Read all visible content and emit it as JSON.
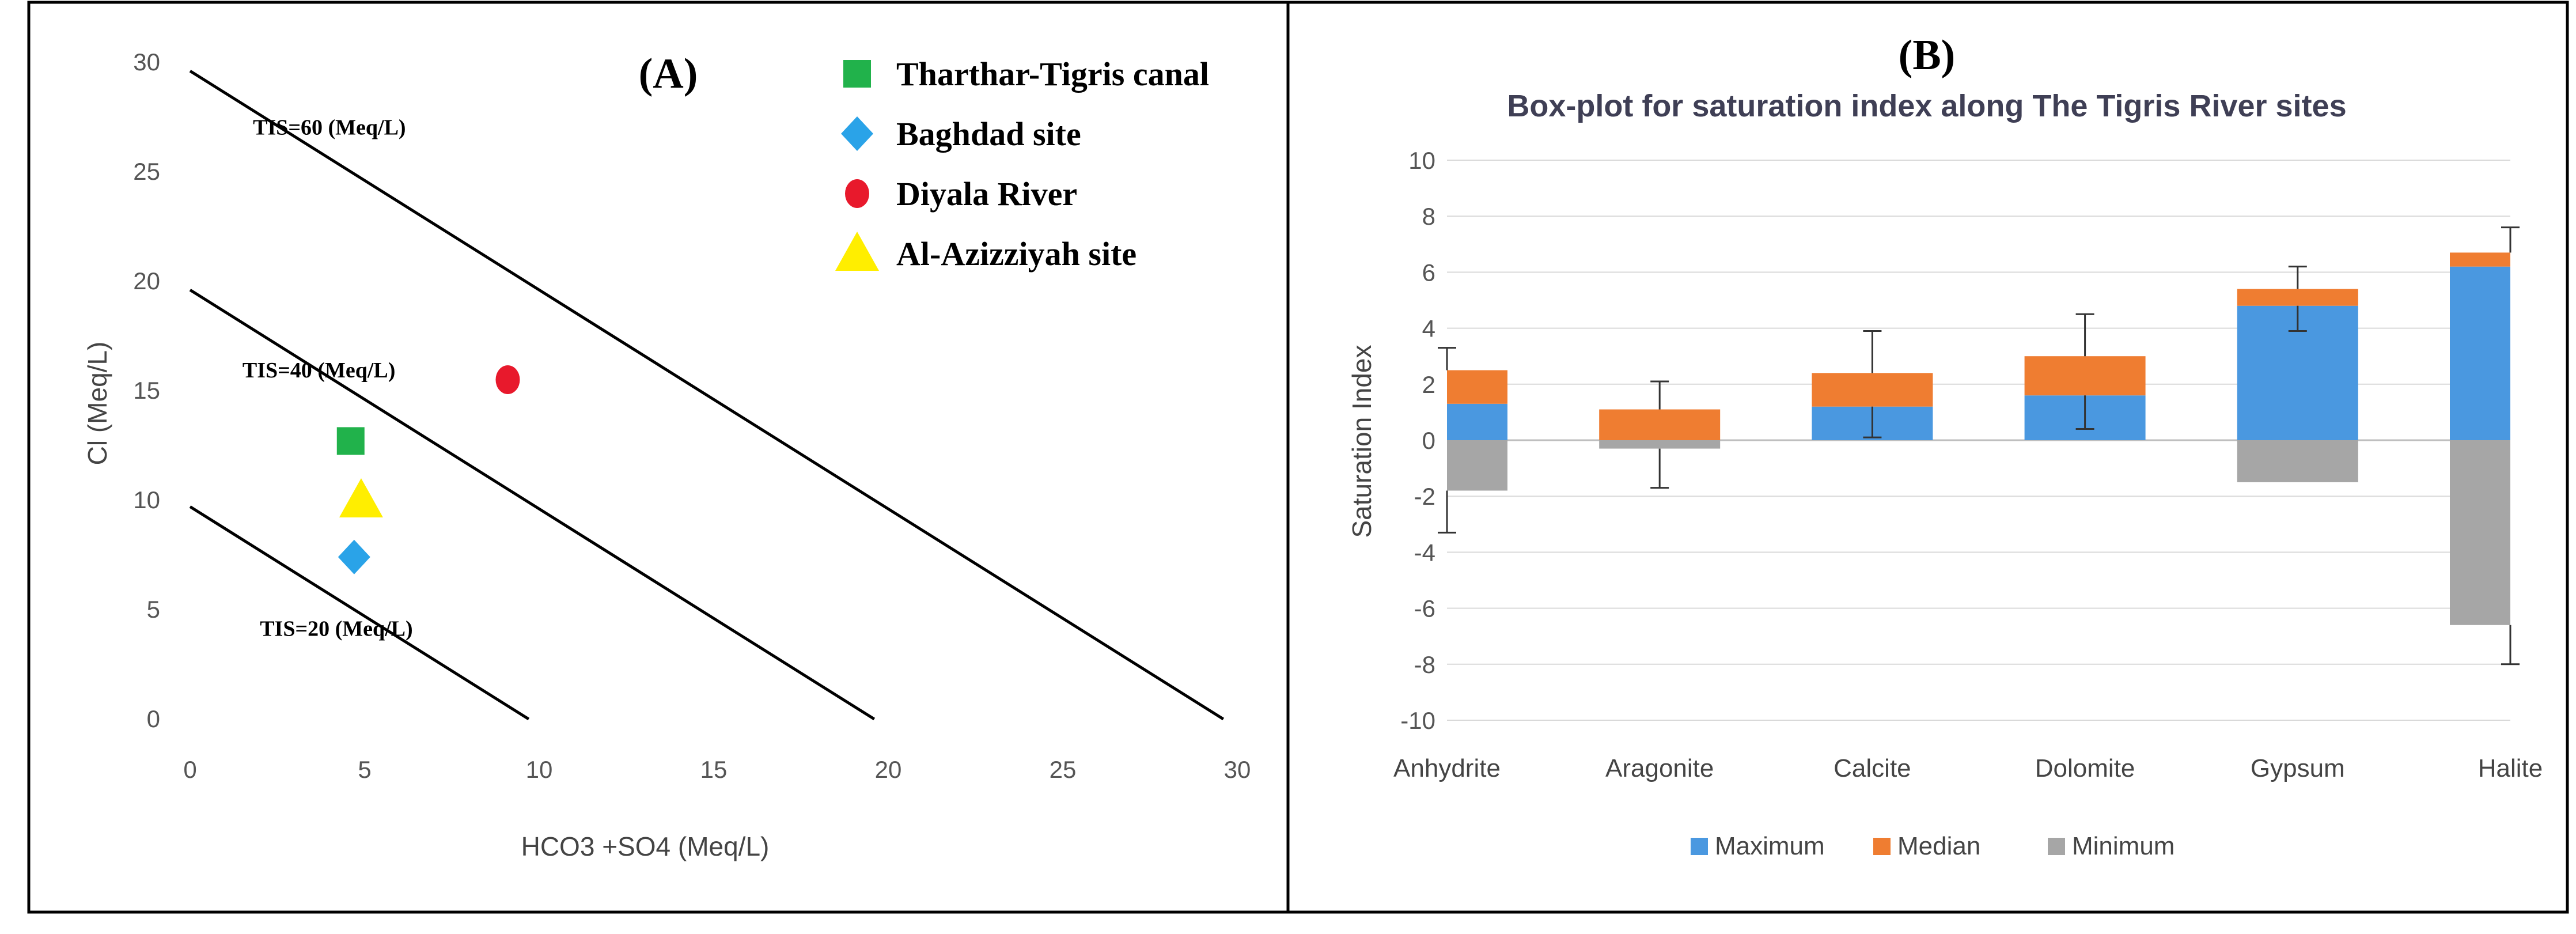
{
  "chart_data": [
    {
      "panel_label": "(A)",
      "type": "scatter",
      "xlabel": "HCO3 +SO4 (Meq/L)",
      "ylabel": "Cl (Meq/L)",
      "xlim": [
        0,
        30
      ],
      "ylim": [
        0,
        30
      ],
      "x_ticks": [
        "0",
        "5",
        "10",
        "15",
        "20",
        "25",
        "30"
      ],
      "y_ticks": [
        "0",
        "5",
        "10",
        "15",
        "20",
        "25",
        "30"
      ],
      "grid": false,
      "legend_position": "top-right",
      "tis_lines": [
        {
          "label": "TIS=60 (Meq/L)",
          "total": 29.6,
          "label_at": [
            1.8,
            26.7
          ]
        },
        {
          "label": "TIS=40 (Meq/L)",
          "total": 19.6,
          "label_at": [
            1.5,
            15.6
          ]
        },
        {
          "label": "TIS=20 (Meq/L)",
          "total": 9.7,
          "label_at": [
            2.0,
            3.8
          ]
        }
      ],
      "series": [
        {
          "name": "Tharthar-Tigris canal",
          "marker": "square",
          "color": "#21b24b",
          "x": 4.6,
          "y": 12.7
        },
        {
          "name": "Baghdad site",
          "marker": "diamond",
          "color": "#2aa3e8",
          "x": 4.7,
          "y": 7.4
        },
        {
          "name": "Diyala River",
          "marker": "circle",
          "color": "#e8192c",
          "x": 9.1,
          "y": 15.5
        },
        {
          "name": "Al-Azizziyah site",
          "marker": "triangle",
          "color": "#ffee00",
          "x": 4.9,
          "y": 10.0
        }
      ]
    },
    {
      "panel_label": "(B)",
      "type": "bar",
      "stacked": true,
      "title": "Box-plot for saturation index along The Tigris River sites",
      "ylabel": "Saturation Index",
      "xlabel": "",
      "ylim": [
        -10,
        10
      ],
      "y_ticks": [
        "10",
        "8",
        "6",
        "4",
        "2",
        "0",
        "-2",
        "-4",
        "-6",
        "-8",
        "-10"
      ],
      "grid": true,
      "legend_position": "bottom",
      "categories": [
        "Anhydrite",
        "Aragonite",
        "Calcite",
        "Dolomite",
        "Gypsum",
        "Halite"
      ],
      "series": [
        {
          "name": "Maximum",
          "color": "#4a98e0",
          "values": [
            1.3,
            0.0,
            1.2,
            1.6,
            4.8,
            6.2
          ]
        },
        {
          "name": "Median",
          "color": "#ef7d31",
          "values": [
            1.2,
            1.1,
            1.2,
            1.4,
            0.6,
            0.5
          ]
        },
        {
          "name": "Minimum",
          "color": "#a6a6a6",
          "values": [
            -1.8,
            -0.3,
            0.0,
            0.0,
            -1.5,
            -6.6
          ]
        }
      ],
      "error_bars": [
        {
          "category": "Anhydrite",
          "top": [
            2.5,
            3.3
          ],
          "bottom": [
            -1.8,
            -3.3
          ]
        },
        {
          "category": "Aragonite",
          "top": [
            1.1,
            2.1
          ],
          "bottom": [
            -0.3,
            -1.7
          ]
        },
        {
          "category": "Calcite",
          "top": [
            2.4,
            3.9
          ],
          "bottom": [
            1.2,
            0.1
          ]
        },
        {
          "category": "Dolomite",
          "top": [
            3.0,
            4.5
          ],
          "bottom": [
            1.6,
            0.4
          ]
        },
        {
          "category": "Gypsum",
          "top": [
            5.4,
            6.2
          ],
          "bottom": [
            4.8,
            3.9
          ]
        },
        {
          "category": "Halite",
          "top": [
            6.7,
            7.6
          ],
          "bottom": [
            -6.6,
            -8.0
          ]
        }
      ]
    }
  ]
}
